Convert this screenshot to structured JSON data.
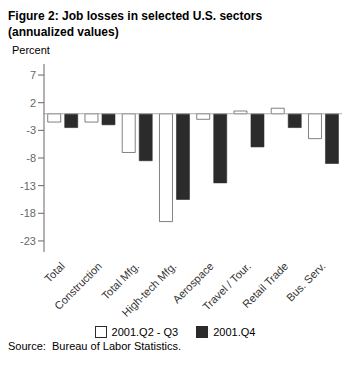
{
  "chart_data": {
    "type": "bar",
    "title": "Figure 2: Job losses in selected U.S. sectors",
    "subtitle": "(annualized values)",
    "y_label": "Percent",
    "annotations": [
      "Source:  Bureau of Labor Statistics."
    ],
    "categories": [
      "Total",
      "Construction",
      "Total Mfg.",
      "High-tech Mfg.",
      "Aerospace",
      "Travel / Tour.",
      "Retail Trade",
      "Bus. Serv."
    ],
    "series": [
      {
        "name": "2001.Q2 - Q3",
        "color": "#ffffff",
        "values": [
          -1.5,
          -1.5,
          -7.0,
          -19.5,
          -1.0,
          0.5,
          1.0,
          -4.5
        ]
      },
      {
        "name": "2001.Q4",
        "color": "#2b2b2b",
        "values": [
          -2.5,
          -2.0,
          -8.5,
          -15.5,
          -12.5,
          -6.0,
          -2.5,
          -9.0
        ]
      }
    ],
    "ylim": [
      -25,
      9
    ],
    "yticks": [
      7,
      2,
      -3,
      -8,
      -13,
      -18,
      -23
    ],
    "grid": false,
    "legend": "bottom"
  }
}
